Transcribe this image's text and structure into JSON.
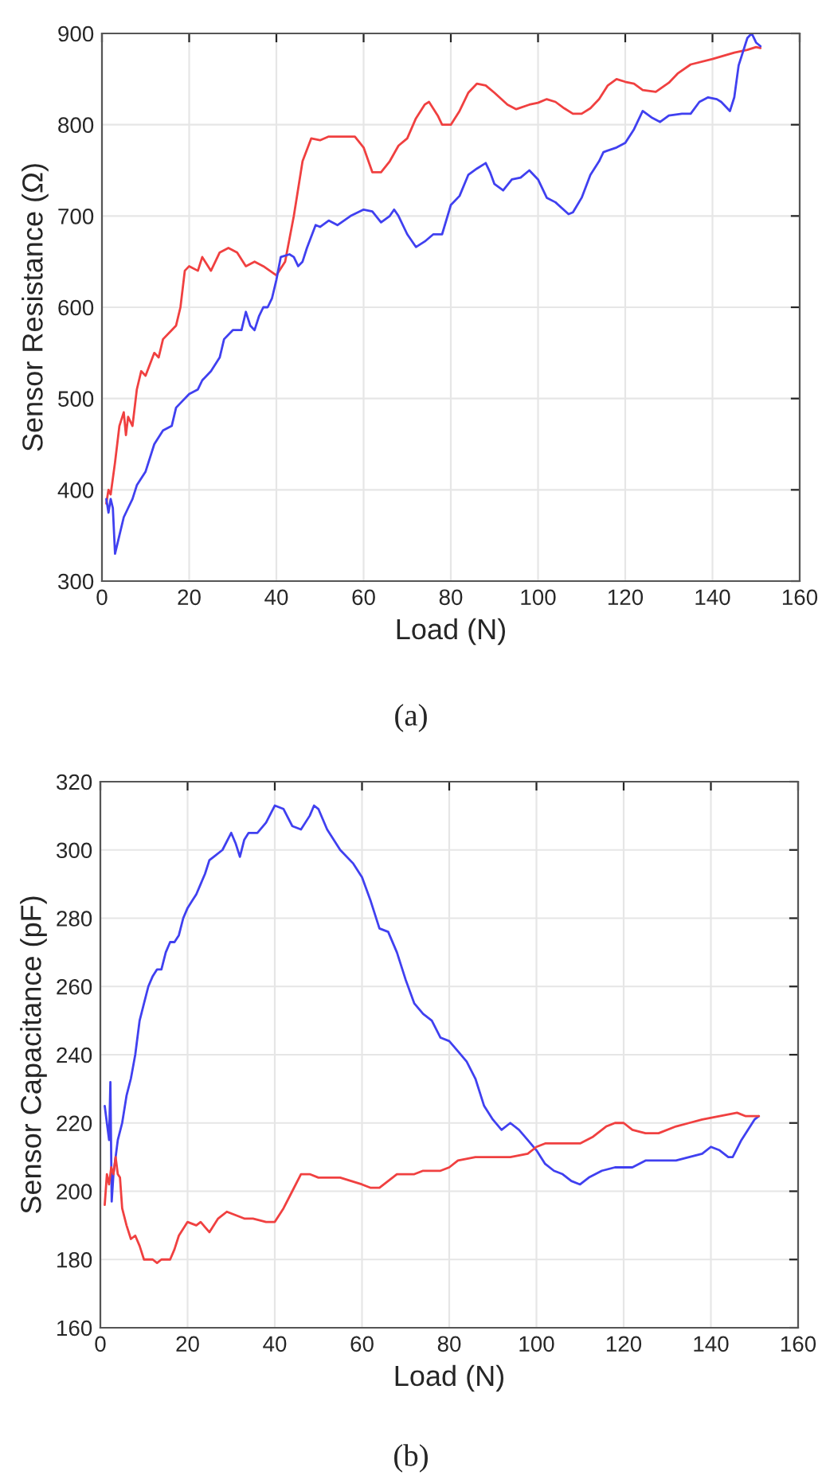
{
  "chart_data": [
    {
      "type": "line",
      "xlabel": "Load (N)",
      "ylabel": "Sensor Resistance (Ω)",
      "annotations": [
        "(a)"
      ],
      "xlim": [
        0,
        160
      ],
      "ylim": [
        300,
        900
      ],
      "xticks": [
        0,
        20,
        40,
        60,
        80,
        100,
        120,
        140,
        160
      ],
      "yticks": [
        300,
        400,
        500,
        600,
        700,
        800,
        900
      ],
      "grid": true,
      "legend": false,
      "series": [
        {
          "color": "#f04040",
          "x": [
            1,
            1.5,
            2,
            3,
            4,
            5,
            5.5,
            6,
            7,
            8,
            9,
            10,
            12,
            13,
            14,
            16,
            17,
            18,
            19,
            20,
            22,
            23,
            25,
            27,
            29,
            31,
            33,
            35,
            37,
            40,
            42,
            44,
            46,
            48,
            50,
            52,
            55,
            58,
            60,
            62,
            64,
            66,
            68,
            70,
            72,
            74,
            75,
            77,
            78,
            80,
            82,
            84,
            86,
            88,
            90,
            93,
            95,
            98,
            100,
            102,
            104,
            106,
            108,
            110,
            112,
            114,
            116,
            118,
            120,
            122,
            124,
            127,
            130,
            132,
            135,
            140,
            145,
            148,
            150,
            151
          ],
          "values": [
            385,
            400,
            395,
            430,
            470,
            485,
            460,
            480,
            470,
            510,
            530,
            525,
            550,
            545,
            565,
            575,
            580,
            600,
            640,
            645,
            640,
            655,
            640,
            660,
            665,
            660,
            645,
            650,
            645,
            635,
            650,
            700,
            760,
            785,
            783,
            787,
            787,
            787,
            775,
            748,
            748,
            760,
            777,
            785,
            807,
            822,
            825,
            810,
            800,
            800,
            815,
            835,
            845,
            843,
            835,
            822,
            817,
            822,
            824,
            828,
            825,
            818,
            812,
            812,
            818,
            828,
            843,
            850,
            847,
            845,
            838,
            836,
            846,
            856,
            866,
            872,
            879,
            882,
            885,
            884
          ]
        },
        {
          "color": "#4040f0",
          "x": [
            1,
            1.5,
            2,
            2.5,
            3,
            4,
            5,
            6,
            7,
            8,
            10,
            12,
            14,
            16,
            17,
            18,
            20,
            22,
            23,
            25,
            27,
            28,
            30,
            32,
            33,
            34,
            35,
            36,
            37,
            38,
            39,
            40,
            41,
            43,
            44,
            45,
            46,
            47,
            49,
            50,
            52,
            54,
            57,
            60,
            62,
            64,
            66,
            67,
            68,
            70,
            72,
            74,
            76,
            78,
            80,
            82,
            84,
            86,
            88,
            89,
            90,
            92,
            94,
            96,
            98,
            100,
            102,
            104,
            107,
            108,
            110,
            112,
            114,
            115,
            118,
            120,
            122,
            124,
            126,
            128,
            130,
            133,
            135,
            137,
            139,
            141,
            142,
            143,
            144,
            145,
            146,
            148,
            149,
            150,
            151
          ],
          "values": [
            390,
            375,
            390,
            380,
            330,
            350,
            370,
            380,
            390,
            405,
            420,
            450,
            465,
            470,
            490,
            495,
            505,
            510,
            520,
            530,
            545,
            565,
            575,
            575,
            595,
            580,
            575,
            590,
            600,
            600,
            610,
            630,
            655,
            658,
            655,
            645,
            650,
            665,
            690,
            688,
            695,
            690,
            700,
            707,
            705,
            693,
            700,
            707,
            700,
            680,
            666,
            672,
            680,
            680,
            712,
            722,
            745,
            752,
            758,
            748,
            735,
            728,
            740,
            742,
            750,
            740,
            720,
            715,
            702,
            704,
            720,
            745,
            760,
            770,
            775,
            780,
            795,
            815,
            808,
            803,
            810,
            812,
            812,
            825,
            830,
            828,
            825,
            820,
            815,
            830,
            865,
            895,
            900,
            890,
            886
          ]
        }
      ]
    },
    {
      "type": "line",
      "xlabel": "Load (N)",
      "ylabel": "Sensor Capacitance (pF)",
      "annotations": [
        "(b)"
      ],
      "xlim": [
        0,
        160
      ],
      "ylim": [
        160,
        320
      ],
      "xticks": [
        0,
        20,
        40,
        60,
        80,
        100,
        120,
        140,
        160
      ],
      "yticks": [
        160,
        180,
        200,
        220,
        240,
        260,
        280,
        300,
        320
      ],
      "grid": true,
      "legend": false,
      "series": [
        {
          "color": "#4040f0",
          "x": [
            1,
            1.5,
            2,
            2.3,
            2.6,
            3,
            4,
            5,
            6,
            7,
            8,
            9,
            10,
            11,
            12,
            13,
            14,
            15,
            16,
            17,
            18,
            19,
            20,
            21,
            22,
            23,
            24,
            25,
            26,
            28,
            30,
            31,
            32,
            33,
            34,
            36,
            38,
            40,
            42,
            44,
            46,
            48,
            49,
            50,
            52,
            55,
            58,
            60,
            62,
            64,
            66,
            68,
            70,
            72,
            74,
            76,
            78,
            80,
            82,
            84,
            86,
            88,
            90,
            92,
            94,
            96,
            98,
            100,
            102,
            104,
            106,
            108,
            110,
            112,
            115,
            118,
            122,
            125,
            128,
            132,
            135,
            138,
            140,
            142,
            144,
            145,
            147,
            150,
            151
          ],
          "values": [
            225,
            220,
            215,
            232,
            197,
            205,
            215,
            220,
            228,
            233,
            240,
            250,
            255,
            260,
            263,
            265,
            265,
            270,
            273,
            273,
            275,
            280,
            283,
            285,
            287,
            290,
            293,
            297,
            298,
            300,
            305,
            302,
            298,
            303,
            305,
            305,
            308,
            313,
            312,
            307,
            306,
            310,
            313,
            312,
            306,
            300,
            296,
            292,
            285,
            277,
            276,
            270,
            262,
            255,
            252,
            250,
            245,
            244,
            241,
            238,
            233,
            225,
            221,
            218,
            220,
            218,
            215,
            212,
            208,
            206,
            205,
            203,
            202,
            204,
            206,
            207,
            207,
            209,
            209,
            209,
            210,
            211,
            213,
            212,
            210,
            210,
            215,
            221,
            222
          ]
        },
        {
          "color": "#f04040",
          "x": [
            1,
            1.5,
            2,
            2.5,
            3,
            3.5,
            4,
            4.5,
            5,
            6,
            7,
            8,
            9,
            10,
            12,
            13,
            14,
            16,
            17,
            18,
            20,
            22,
            23,
            25,
            27,
            29,
            31,
            33,
            35,
            38,
            40,
            42,
            44,
            46,
            48,
            50,
            55,
            60,
            62,
            64,
            66,
            68,
            72,
            74,
            78,
            80,
            82,
            86,
            90,
            94,
            98,
            100,
            102,
            106,
            110,
            113,
            116,
            118,
            120,
            122,
            125,
            128,
            132,
            135,
            138,
            142,
            146,
            148,
            151
          ],
          "values": [
            196,
            205,
            202,
            207,
            205,
            210,
            205,
            204,
            195,
            190,
            186,
            187,
            184,
            180,
            180,
            179,
            180,
            180,
            183,
            187,
            191,
            190,
            191,
            188,
            192,
            194,
            193,
            192,
            192,
            191,
            191,
            195,
            200,
            205,
            205,
            204,
            204,
            202,
            201,
            201,
            203,
            205,
            205,
            206,
            206,
            207,
            209,
            210,
            210,
            210,
            211,
            213,
            214,
            214,
            214,
            216,
            219,
            220,
            220,
            218,
            217,
            217,
            219,
            220,
            221,
            222,
            223,
            222,
            222
          ]
        }
      ]
    }
  ]
}
